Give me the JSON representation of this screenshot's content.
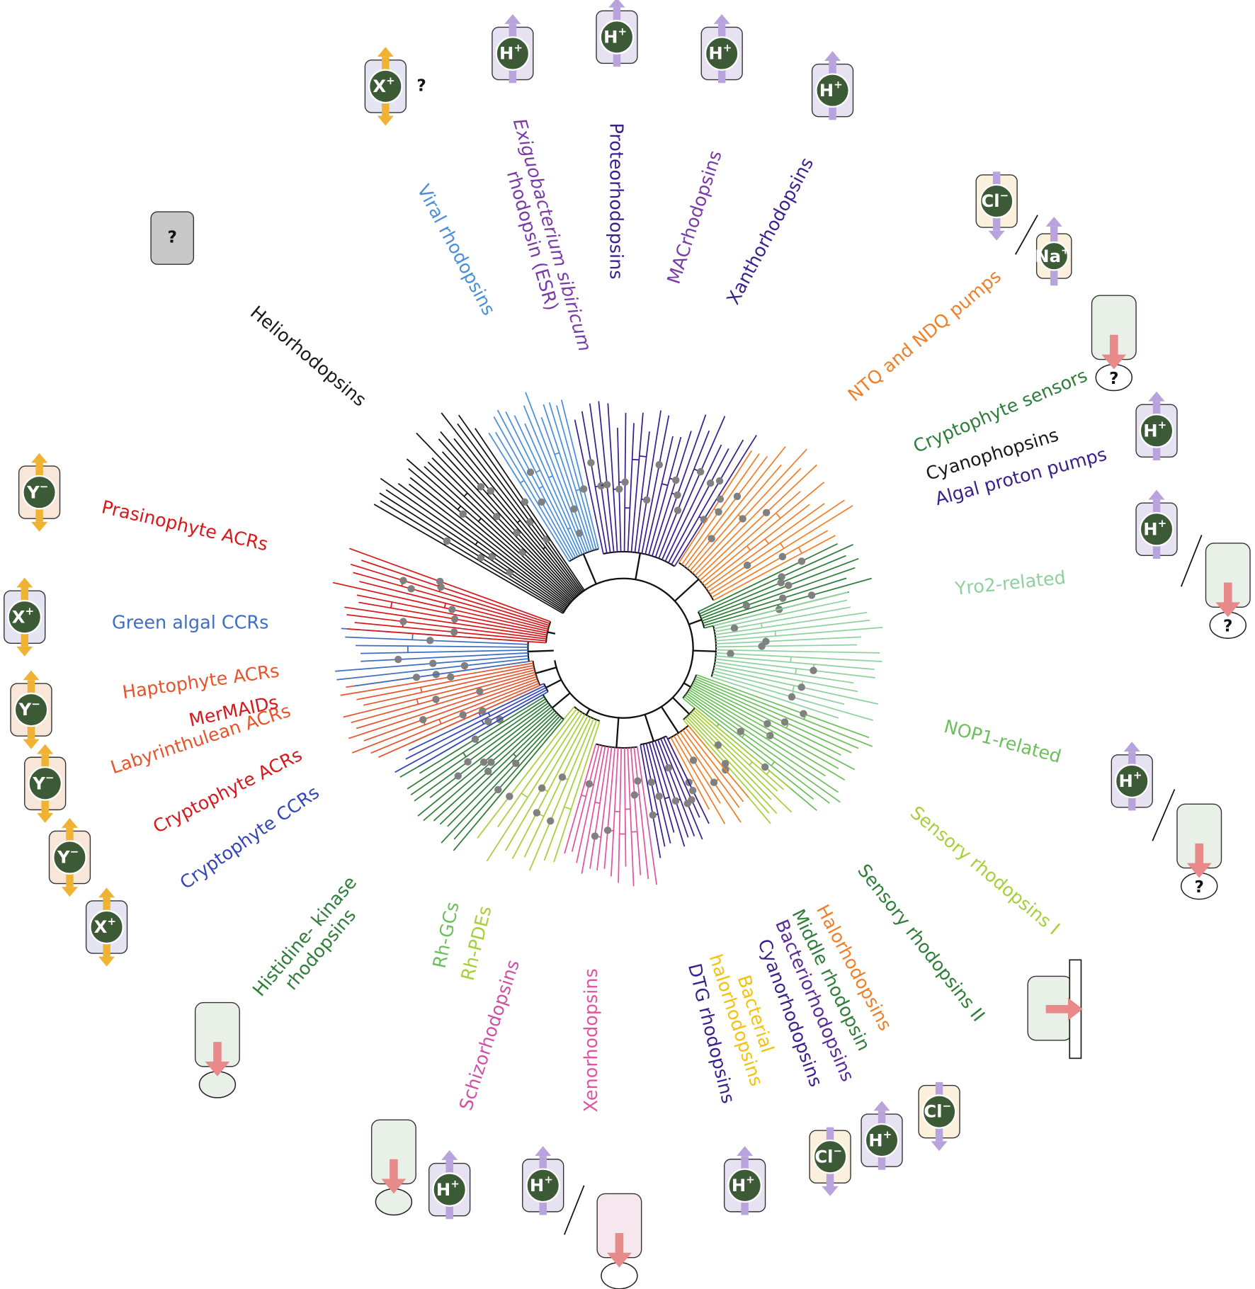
{
  "clades": [
    {
      "lines": [
        "Heliorhodopsins"
      ],
      "color": "#1a1a1a"
    },
    {
      "lines": [
        "Viral rhodopsins"
      ],
      "color": "#4a8fd8"
    },
    {
      "lines": [
        "Exiguobacterium sibiricum",
        "rhodopsin (ESR)"
      ],
      "color": "#7a3aa8"
    },
    {
      "lines": [
        "Proteorhodopsins"
      ],
      "color": "#3a1f8f"
    },
    {
      "lines": [
        "MACrhodopsins"
      ],
      "color": "#7a3aa8"
    },
    {
      "lines": [
        "Xanthorhodopsins"
      ],
      "color": "#3a1f8f"
    },
    {
      "lines": [
        "NTQ and NDQ pumps"
      ],
      "color": "#f07f2a"
    },
    {
      "lines": [
        "Cryptophyte sensors"
      ],
      "color": "#2f7d3a"
    },
    {
      "lines": [
        "Cyanophopsins"
      ],
      "color": "#1a1a1a"
    },
    {
      "lines": [
        "Algal proton pumps"
      ],
      "color": "#3a1f8f"
    },
    {
      "lines": [
        "Yro2-related"
      ],
      "color": "#8fd19e"
    },
    {
      "lines": [
        "NOP1-related"
      ],
      "color": "#6cbf5a"
    },
    {
      "lines": [
        "Sensory rhodopsins I"
      ],
      "color": "#a6cf3a"
    },
    {
      "lines": [
        "Sensory rhodopsins II"
      ],
      "color": "#2f7d3a"
    },
    {
      "lines": [
        "Halorhodopsins"
      ],
      "color": "#f07f2a"
    },
    {
      "lines": [
        "Middle rhodopsin"
      ],
      "color": "#2f7d3a"
    },
    {
      "lines": [
        "Bacteriorhodopsins"
      ],
      "color": "#5a2a9a"
    },
    {
      "lines": [
        "Cyanorhodopsins"
      ],
      "color": "#3a1f8f"
    },
    {
      "lines": [
        "Bacterial",
        "halorhodopsins"
      ],
      "color": "#f4c20d"
    },
    {
      "lines": [
        "DTG rhodopsins"
      ],
      "color": "#3a1f8f"
    },
    {
      "lines": [
        "Xenorhodopsins"
      ],
      "color": "#e0559f"
    },
    {
      "lines": [
        "Schizorhodopsins"
      ],
      "color": "#d050a8"
    },
    {
      "lines": [
        "Rh-PDEs"
      ],
      "color": "#a6cf3a"
    },
    {
      "lines": [
        "Rh-GCs"
      ],
      "color": "#6cbf5a"
    },
    {
      "lines": [
        "Histidine- kinase",
        "rhodopsins"
      ],
      "color": "#2f7d3a"
    },
    {
      "lines": [
        "Cryptophyte CCRs"
      ],
      "color": "#3446b8"
    },
    {
      "lines": [
        "Cryptophyte ACRs"
      ],
      "color": "#d7191c"
    },
    {
      "lines": [
        "Labyrinthulean ACRs"
      ],
      "color": "#e8542b"
    },
    {
      "lines": [
        "MerMAIDs"
      ],
      "color": "#d7191c"
    },
    {
      "lines": [
        "Haptophyte ACRs"
      ],
      "color": "#e8542b"
    },
    {
      "lines": [
        "Green algal CCRs"
      ],
      "color": "#3d6fc4"
    },
    {
      "lines": [
        "Prasinophyte ACRs"
      ],
      "color": "#d7191c"
    }
  ],
  "icons": [
    {
      "ion": "X",
      "charge": "+",
      "note": "?"
    },
    {
      "ion": "H",
      "charge": "+"
    },
    {
      "ion": "H",
      "charge": "+"
    },
    {
      "ion": "H",
      "charge": "+"
    },
    {
      "ion": "H",
      "charge": "+"
    },
    {
      "label": "?"
    },
    {
      "ion": "Cl",
      "charge": "−"
    },
    {
      "ion": "Na",
      "charge": "+"
    },
    {
      "label": "?"
    },
    {
      "ion": "H",
      "charge": "+"
    },
    {
      "ion": "H",
      "charge": "+"
    },
    {
      "label": "?"
    },
    {
      "ion": "Y",
      "charge": "−"
    },
    {
      "ion": "X",
      "charge": "+"
    },
    {
      "ion": "Y",
      "charge": "−"
    },
    {
      "ion": "Y",
      "charge": "−"
    },
    {
      "ion": "Y",
      "charge": "−"
    },
    {
      "ion": "X",
      "charge": "+"
    },
    {
      "ion": "H",
      "charge": "+"
    },
    {
      "label": "?"
    },
    {
      "ion": "H",
      "charge": "+"
    },
    {
      "ion": "H",
      "charge": "+"
    },
    {
      "ion": "H",
      "charge": "+"
    },
    {
      "ion": "Cl",
      "charge": "−"
    },
    {
      "ion": "H",
      "charge": "+"
    },
    {
      "ion": "Cl",
      "charge": "−"
    }
  ]
}
